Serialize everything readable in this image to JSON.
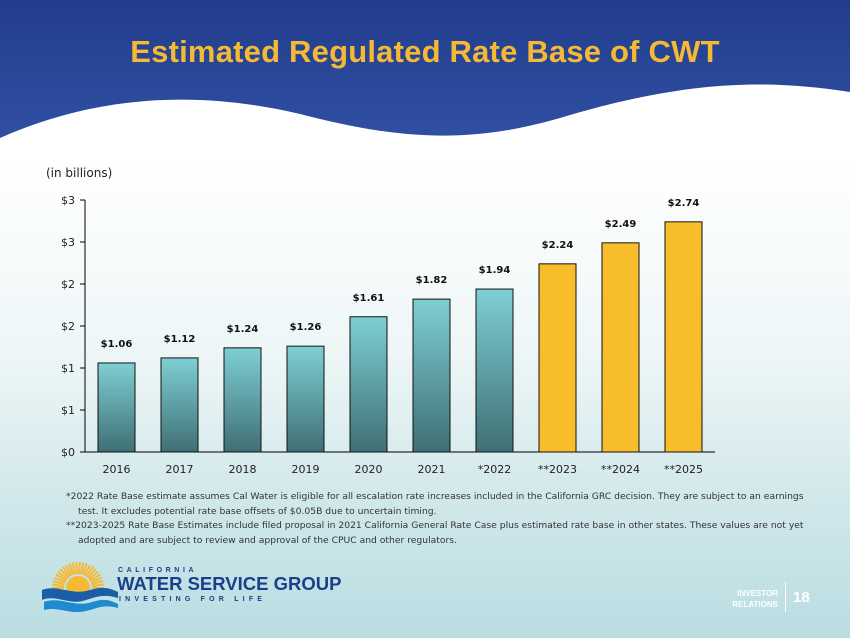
{
  "slide": {
    "title": "Estimated Regulated Rate Base of CWT",
    "units_label": "(in billions)",
    "footnotes": [
      "*2022 Rate Base estimate assumes Cal Water is eligible for all escalation rate increases included in the California GRC decision. They are subject to an earnings test. It excludes potential rate base offsets of $0.05B due to uncertain timing.",
      "**2023-2025 Rate Base Estimates include filed proposal in 2021 California General Rate Case plus estimated rate base in other states. These values are not yet adopted and are subject to review and approval of the CPUC and other regulators."
    ],
    "brand": {
      "top": "CALIFORNIA",
      "main": "WATER SERVICE GROUP",
      "tagline": "INVESTING FOR LIFE"
    },
    "investor_relations": [
      "INVESTOR",
      "RELATIONS"
    ],
    "page_number": "18"
  },
  "colors": {
    "header_blue": "#233d8c",
    "title_gold": "#f5b934",
    "bar_teal_top": "#7ecfd4",
    "bar_teal_bottom": "#3f6f74",
    "bar_gold": "#f8bd2b",
    "brand_blue": "#1a3f8b"
  },
  "chart_data": {
    "type": "bar",
    "categories": [
      "2016",
      "2017",
      "2018",
      "2019",
      "2020",
      "2021",
      "*2022",
      "**2023",
      "**2024",
      "**2025"
    ],
    "values": [
      1.06,
      1.12,
      1.24,
      1.26,
      1.61,
      1.82,
      1.94,
      2.24,
      2.49,
      2.74
    ],
    "data_labels": [
      "$1.06",
      "$1.12",
      "$1.24",
      "$1.26",
      "$1.61",
      "$1.82",
      "$1.94",
      "$2.24",
      "$2.49",
      "$2.74"
    ],
    "bar_styles": [
      "actual",
      "actual",
      "actual",
      "actual",
      "actual",
      "actual",
      "actual",
      "estimate",
      "estimate",
      "estimate"
    ],
    "ylim": [
      0,
      3
    ],
    "ytick_values": [
      0,
      0.5,
      1,
      1.5,
      2,
      2.5,
      3
    ],
    "ytick_labels": [
      "$0",
      "$1",
      "$1",
      "$2",
      "$2",
      "$3",
      "$3"
    ],
    "grid": false,
    "legend": "none"
  }
}
